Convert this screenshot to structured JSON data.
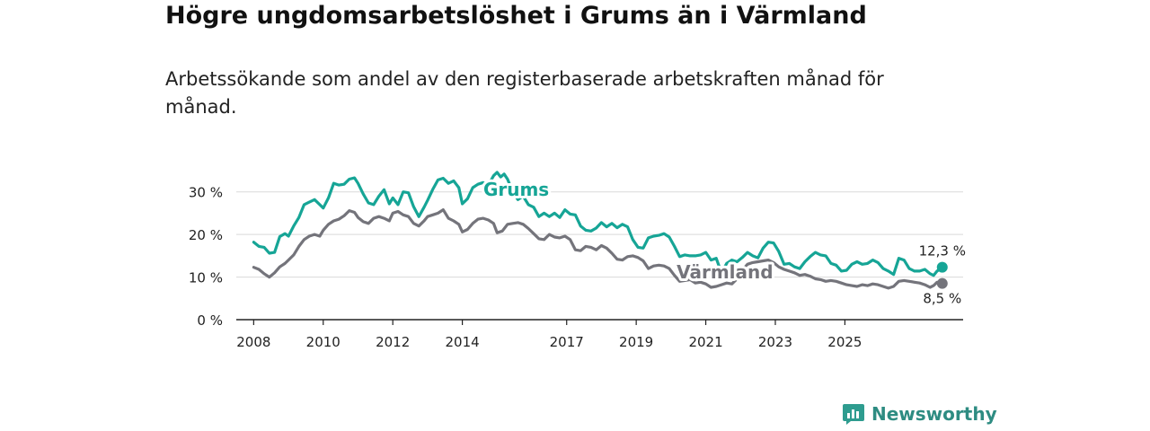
{
  "title": "Högre ungdomsarbetslöshet i Grums än i Värmland",
  "subtitle": "Arbetssökande som andel av den registerbaserade arbetskraften månad för månad.",
  "brand": {
    "name": "Newsworthy",
    "color": "#2e9c8f"
  },
  "chart_data": {
    "type": "line",
    "title": "Högre ungdomsarbetslöshet i Grums än i Värmland",
    "xlabel": "",
    "ylabel": "",
    "ylim": [
      0,
      35
    ],
    "y_ticks": [
      0,
      10,
      20,
      30
    ],
    "y_tick_labels": [
      "0 %",
      "10 %",
      "20 %",
      "30 %"
    ],
    "x_ticks": [
      2008,
      2010,
      2012,
      2014,
      2017,
      2019,
      2021,
      2023,
      2025
    ],
    "x_tick_labels": [
      "2008",
      "2010",
      "2012",
      "2014",
      "2017",
      "2019",
      "2021",
      "2023",
      "2025"
    ],
    "grid": true,
    "series": [
      {
        "name": "Grums",
        "color": "#16a596",
        "end_label": "12,3 %",
        "points": [
          [
            2008.0,
            18.2
          ],
          [
            2008.15,
            17.2
          ],
          [
            2008.3,
            17.0
          ],
          [
            2008.45,
            15.6
          ],
          [
            2008.6,
            15.8
          ],
          [
            2008.75,
            19.5
          ],
          [
            2008.9,
            20.2
          ],
          [
            2009.0,
            19.6
          ],
          [
            2009.15,
            22.0
          ],
          [
            2009.3,
            24.0
          ],
          [
            2009.45,
            27.0
          ],
          [
            2009.6,
            27.6
          ],
          [
            2009.75,
            28.2
          ],
          [
            2009.9,
            27.0
          ],
          [
            2010.0,
            26.2
          ],
          [
            2010.15,
            28.6
          ],
          [
            2010.3,
            32.0
          ],
          [
            2010.45,
            31.6
          ],
          [
            2010.6,
            31.8
          ],
          [
            2010.75,
            33.0
          ],
          [
            2010.9,
            33.3
          ],
          [
            2011.0,
            32.0
          ],
          [
            2011.15,
            29.5
          ],
          [
            2011.3,
            27.4
          ],
          [
            2011.45,
            27.0
          ],
          [
            2011.6,
            29.0
          ],
          [
            2011.75,
            30.5
          ],
          [
            2011.9,
            27.2
          ],
          [
            2012.0,
            28.6
          ],
          [
            2012.15,
            27.0
          ],
          [
            2012.3,
            30.0
          ],
          [
            2012.45,
            29.8
          ],
          [
            2012.6,
            26.5
          ],
          [
            2012.75,
            24.2
          ],
          [
            2012.9,
            26.4
          ],
          [
            2013.0,
            28.0
          ],
          [
            2013.15,
            30.6
          ],
          [
            2013.3,
            32.8
          ],
          [
            2013.45,
            33.2
          ],
          [
            2013.6,
            32.0
          ],
          [
            2013.75,
            32.6
          ],
          [
            2013.9,
            31.0
          ],
          [
            2014.0,
            27.2
          ],
          [
            2014.15,
            28.4
          ],
          [
            2014.3,
            31.0
          ],
          [
            2014.45,
            31.8
          ],
          [
            2014.6,
            32.2
          ],
          [
            2014.75,
            31.6
          ],
          [
            2014.9,
            33.8
          ],
          [
            2015.0,
            34.6
          ],
          [
            2015.1,
            33.5
          ],
          [
            2015.2,
            34.2
          ],
          [
            2015.3,
            33.0
          ],
          [
            2015.45,
            30.0
          ],
          [
            2015.6,
            28.2
          ],
          [
            2015.75,
            29.0
          ],
          [
            2015.9,
            27.0
          ],
          [
            2016.05,
            26.4
          ],
          [
            2016.2,
            24.2
          ],
          [
            2016.35,
            25.0
          ],
          [
            2016.5,
            24.2
          ],
          [
            2016.65,
            25.0
          ],
          [
            2016.8,
            24.0
          ],
          [
            2016.95,
            25.8
          ],
          [
            2017.1,
            24.8
          ],
          [
            2017.25,
            24.6
          ],
          [
            2017.4,
            22.0
          ],
          [
            2017.55,
            21.0
          ],
          [
            2017.7,
            20.8
          ],
          [
            2017.85,
            21.5
          ],
          [
            2018.0,
            22.8
          ],
          [
            2018.15,
            21.8
          ],
          [
            2018.3,
            22.6
          ],
          [
            2018.45,
            21.6
          ],
          [
            2018.6,
            22.4
          ],
          [
            2018.75,
            21.8
          ],
          [
            2018.9,
            18.8
          ],
          [
            2019.05,
            17.0
          ],
          [
            2019.2,
            16.8
          ],
          [
            2019.35,
            19.2
          ],
          [
            2019.5,
            19.6
          ],
          [
            2019.65,
            19.8
          ],
          [
            2019.8,
            20.2
          ],
          [
            2019.95,
            19.4
          ],
          [
            2020.1,
            17.2
          ],
          [
            2020.25,
            14.8
          ],
          [
            2020.4,
            15.2
          ],
          [
            2020.55,
            15.0
          ],
          [
            2020.7,
            15.0
          ],
          [
            2020.85,
            15.2
          ],
          [
            2021.0,
            15.8
          ],
          [
            2021.15,
            14.0
          ],
          [
            2021.3,
            14.4
          ],
          [
            2021.45,
            11.0
          ],
          [
            2021.6,
            13.2
          ],
          [
            2021.75,
            14.0
          ],
          [
            2021.9,
            13.6
          ],
          [
            2022.05,
            14.6
          ],
          [
            2022.2,
            15.8
          ],
          [
            2022.35,
            15.0
          ],
          [
            2022.5,
            14.5
          ],
          [
            2022.65,
            16.8
          ],
          [
            2022.8,
            18.2
          ],
          [
            2022.95,
            18.0
          ],
          [
            2023.1,
            16.0
          ],
          [
            2023.25,
            13.0
          ],
          [
            2023.4,
            13.2
          ],
          [
            2023.55,
            12.4
          ],
          [
            2023.7,
            12.0
          ],
          [
            2023.85,
            13.6
          ],
          [
            2024.0,
            14.8
          ],
          [
            2024.15,
            15.8
          ],
          [
            2024.3,
            15.2
          ],
          [
            2024.45,
            15.0
          ],
          [
            2024.6,
            13.2
          ],
          [
            2024.75,
            12.8
          ],
          [
            2024.9,
            11.4
          ],
          [
            2025.05,
            11.6
          ],
          [
            2025.2,
            13.0
          ],
          [
            2025.35,
            13.6
          ],
          [
            2025.5,
            13.0
          ],
          [
            2025.65,
            13.2
          ],
          [
            2025.8,
            14.0
          ],
          [
            2025.95,
            13.4
          ],
          [
            2026.1,
            12.0
          ],
          [
            2026.25,
            11.4
          ],
          [
            2026.4,
            10.6
          ],
          [
            2026.55,
            14.4
          ],
          [
            2026.7,
            14.0
          ],
          [
            2026.85,
            12.0
          ],
          [
            2027.0,
            11.4
          ],
          [
            2027.15,
            11.4
          ],
          [
            2027.3,
            11.8
          ],
          [
            2027.45,
            10.8
          ],
          [
            2027.55,
            10.4
          ],
          [
            2027.65,
            11.4
          ],
          [
            2027.8,
            12.3
          ]
        ]
      },
      {
        "name": "Värmland",
        "color": "#74747b",
        "end_label": "8,5 %",
        "points": [
          [
            2008.0,
            12.3
          ],
          [
            2008.15,
            11.8
          ],
          [
            2008.3,
            10.8
          ],
          [
            2008.45,
            10.0
          ],
          [
            2008.6,
            11.0
          ],
          [
            2008.75,
            12.4
          ],
          [
            2008.9,
            13.2
          ],
          [
            2009.0,
            14.0
          ],
          [
            2009.15,
            15.2
          ],
          [
            2009.3,
            17.2
          ],
          [
            2009.45,
            18.8
          ],
          [
            2009.6,
            19.6
          ],
          [
            2009.75,
            20.0
          ],
          [
            2009.9,
            19.6
          ],
          [
            2010.0,
            21.0
          ],
          [
            2010.15,
            22.4
          ],
          [
            2010.3,
            23.2
          ],
          [
            2010.45,
            23.6
          ],
          [
            2010.6,
            24.4
          ],
          [
            2010.75,
            25.6
          ],
          [
            2010.9,
            25.2
          ],
          [
            2011.0,
            24.0
          ],
          [
            2011.15,
            23.0
          ],
          [
            2011.3,
            22.6
          ],
          [
            2011.45,
            23.8
          ],
          [
            2011.6,
            24.2
          ],
          [
            2011.75,
            23.8
          ],
          [
            2011.9,
            23.2
          ],
          [
            2012.0,
            25.0
          ],
          [
            2012.15,
            25.4
          ],
          [
            2012.3,
            24.6
          ],
          [
            2012.45,
            24.2
          ],
          [
            2012.6,
            22.6
          ],
          [
            2012.75,
            22.0
          ],
          [
            2012.9,
            23.2
          ],
          [
            2013.0,
            24.2
          ],
          [
            2013.15,
            24.6
          ],
          [
            2013.3,
            25.0
          ],
          [
            2013.45,
            25.8
          ],
          [
            2013.6,
            23.8
          ],
          [
            2013.75,
            23.2
          ],
          [
            2013.9,
            22.4
          ],
          [
            2014.0,
            20.6
          ],
          [
            2014.15,
            21.2
          ],
          [
            2014.3,
            22.6
          ],
          [
            2014.45,
            23.6
          ],
          [
            2014.6,
            23.8
          ],
          [
            2014.75,
            23.4
          ],
          [
            2014.9,
            22.6
          ],
          [
            2015.0,
            20.4
          ],
          [
            2015.15,
            20.8
          ],
          [
            2015.3,
            22.4
          ],
          [
            2015.45,
            22.6
          ],
          [
            2015.6,
            22.8
          ],
          [
            2015.75,
            22.4
          ],
          [
            2015.9,
            21.4
          ],
          [
            2016.05,
            20.2
          ],
          [
            2016.2,
            19.0
          ],
          [
            2016.35,
            18.8
          ],
          [
            2016.5,
            20.0
          ],
          [
            2016.65,
            19.4
          ],
          [
            2016.8,
            19.2
          ],
          [
            2016.95,
            19.6
          ],
          [
            2017.1,
            18.8
          ],
          [
            2017.25,
            16.4
          ],
          [
            2017.4,
            16.2
          ],
          [
            2017.55,
            17.2
          ],
          [
            2017.7,
            17.0
          ],
          [
            2017.85,
            16.4
          ],
          [
            2018.0,
            17.4
          ],
          [
            2018.15,
            16.8
          ],
          [
            2018.3,
            15.6
          ],
          [
            2018.45,
            14.2
          ],
          [
            2018.6,
            14.0
          ],
          [
            2018.75,
            14.8
          ],
          [
            2018.9,
            15.0
          ],
          [
            2019.05,
            14.6
          ],
          [
            2019.2,
            13.8
          ],
          [
            2019.35,
            12.0
          ],
          [
            2019.5,
            12.6
          ],
          [
            2019.65,
            12.8
          ],
          [
            2019.8,
            12.6
          ],
          [
            2019.95,
            12.0
          ],
          [
            2020.1,
            10.4
          ],
          [
            2020.25,
            9.0
          ],
          [
            2020.4,
            9.2
          ],
          [
            2020.55,
            9.4
          ],
          [
            2020.7,
            8.6
          ],
          [
            2020.85,
            8.8
          ],
          [
            2021.0,
            8.4
          ],
          [
            2021.15,
            7.6
          ],
          [
            2021.3,
            7.8
          ],
          [
            2021.45,
            8.2
          ],
          [
            2021.6,
            8.6
          ],
          [
            2021.75,
            8.4
          ],
          [
            2021.9,
            9.6
          ],
          [
            2022.05,
            11.6
          ],
          [
            2022.2,
            13.0
          ],
          [
            2022.35,
            13.4
          ],
          [
            2022.5,
            13.6
          ],
          [
            2022.65,
            13.8
          ],
          [
            2022.8,
            14.0
          ],
          [
            2022.95,
            13.4
          ],
          [
            2023.1,
            12.4
          ],
          [
            2023.25,
            11.8
          ],
          [
            2023.4,
            11.4
          ],
          [
            2023.55,
            11.0
          ],
          [
            2023.7,
            10.4
          ],
          [
            2023.85,
            10.6
          ],
          [
            2024.0,
            10.2
          ],
          [
            2024.15,
            9.6
          ],
          [
            2024.3,
            9.4
          ],
          [
            2024.45,
            9.0
          ],
          [
            2024.6,
            9.2
          ],
          [
            2024.75,
            9.0
          ],
          [
            2024.9,
            8.6
          ],
          [
            2025.05,
            8.2
          ],
          [
            2025.2,
            8.0
          ],
          [
            2025.35,
            7.8
          ],
          [
            2025.5,
            8.2
          ],
          [
            2025.65,
            8.0
          ],
          [
            2025.8,
            8.4
          ],
          [
            2025.95,
            8.2
          ],
          [
            2026.1,
            7.8
          ],
          [
            2026.25,
            7.4
          ],
          [
            2026.4,
            7.8
          ],
          [
            2026.55,
            9.0
          ],
          [
            2026.7,
            9.2
          ],
          [
            2026.85,
            9.0
          ],
          [
            2027.0,
            8.8
          ],
          [
            2027.15,
            8.6
          ],
          [
            2027.3,
            8.2
          ],
          [
            2027.45,
            7.6
          ],
          [
            2027.55,
            8.0
          ],
          [
            2027.65,
            8.8
          ],
          [
            2027.8,
            8.5
          ]
        ]
      }
    ],
    "annotations": [
      {
        "text": "Grums",
        "series": "Grums"
      },
      {
        "text": "Värmland",
        "series": "Värmland"
      }
    ]
  }
}
